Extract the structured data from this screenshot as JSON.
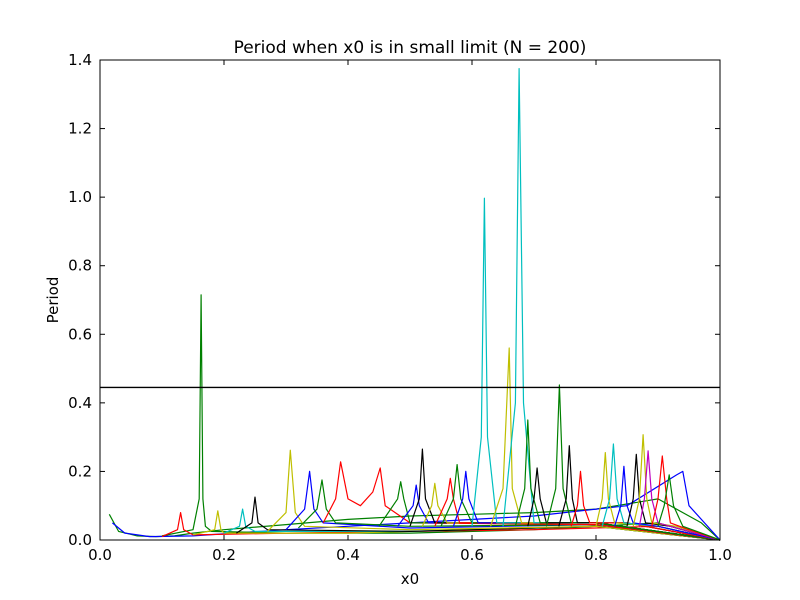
{
  "chart_data": {
    "type": "line",
    "title": "Period when x0 is in small limit (N = 200)",
    "xlabel": "x0",
    "ylabel": "Period",
    "xlim": [
      0.0,
      1.0
    ],
    "ylim": [
      0.0,
      1.4
    ],
    "xticks": [
      "0.0",
      "0.2",
      "0.4",
      "0.6",
      "0.8",
      "1.0"
    ],
    "yticks": [
      "0.0",
      "0.2",
      "0.4",
      "0.6",
      "0.8",
      "1.0",
      "1.2",
      "1.4"
    ],
    "grid": false,
    "reference_line": {
      "y": 0.445,
      "color": "#000000"
    },
    "colors": [
      "#0000ff",
      "#008000",
      "#ff0000",
      "#00bfbf",
      "#bf00bf",
      "#bfbf00",
      "#000000"
    ],
    "series": [
      {
        "x": [
          0.015,
          0.03,
          0.06,
          0.09,
          0.12,
          0.15,
          0.2,
          0.3,
          0.4,
          0.5,
          0.6,
          0.7,
          0.8,
          0.9,
          0.97,
          1.0
        ],
        "y": [
          0.075,
          0.025,
          0.012,
          0.01,
          0.012,
          0.02,
          0.03,
          0.045,
          0.06,
          0.07,
          0.075,
          0.08,
          0.09,
          0.12,
          0.05,
          0.0
        ],
        "color": "#008000"
      },
      {
        "x": [
          0.02,
          0.04,
          0.08,
          0.15,
          0.3,
          0.5,
          0.7,
          0.85,
          0.93,
          0.94,
          0.95,
          1.0
        ],
        "y": [
          0.05,
          0.02,
          0.01,
          0.012,
          0.03,
          0.05,
          0.07,
          0.1,
          0.19,
          0.2,
          0.1,
          0.0
        ],
        "color": "#0000ff"
      },
      {
        "x": [
          0.1,
          0.15,
          0.16,
          0.163,
          0.166,
          0.17,
          0.18,
          0.3,
          0.5,
          0.7,
          0.9,
          1.0
        ],
        "y": [
          0.012,
          0.03,
          0.12,
          0.715,
          0.12,
          0.04,
          0.025,
          0.02,
          0.02,
          0.03,
          0.05,
          0.0
        ],
        "color": "#008000"
      },
      {
        "x": [
          0.1,
          0.125,
          0.13,
          0.135,
          0.15,
          0.3,
          0.5,
          0.7,
          0.9,
          1.0
        ],
        "y": [
          0.01,
          0.03,
          0.08,
          0.03,
          0.015,
          0.02,
          0.025,
          0.03,
          0.04,
          0.0
        ],
        "color": "#ff0000"
      },
      {
        "x": [
          0.15,
          0.185,
          0.19,
          0.195,
          0.2,
          0.4,
          0.6,
          0.8,
          1.0
        ],
        "y": [
          0.015,
          0.03,
          0.085,
          0.03,
          0.02,
          0.02,
          0.03,
          0.04,
          0.0
        ],
        "color": "#bfbf00"
      },
      {
        "x": [
          0.2,
          0.225,
          0.23,
          0.235,
          0.25,
          0.5,
          0.8,
          1.0
        ],
        "y": [
          0.02,
          0.04,
          0.09,
          0.04,
          0.025,
          0.025,
          0.04,
          0.0
        ],
        "color": "#00bfbf"
      },
      {
        "x": [
          0.22,
          0.245,
          0.25,
          0.255,
          0.27,
          0.5,
          0.8,
          1.0
        ],
        "y": [
          0.02,
          0.05,
          0.125,
          0.05,
          0.03,
          0.025,
          0.04,
          0.0
        ],
        "color": "#000000"
      },
      {
        "x": [
          0.27,
          0.3,
          0.307,
          0.315,
          0.33,
          0.5,
          0.8,
          1.0
        ],
        "y": [
          0.025,
          0.08,
          0.262,
          0.08,
          0.04,
          0.03,
          0.04,
          0.0
        ],
        "color": "#bfbf00"
      },
      {
        "x": [
          0.3,
          0.33,
          0.338,
          0.345,
          0.36,
          0.5,
          0.8,
          1.0
        ],
        "y": [
          0.03,
          0.09,
          0.2,
          0.09,
          0.05,
          0.035,
          0.045,
          0.0
        ],
        "color": "#0000ff"
      },
      {
        "x": [
          0.32,
          0.35,
          0.358,
          0.365,
          0.38,
          0.5,
          0.8,
          1.0
        ],
        "y": [
          0.035,
          0.09,
          0.175,
          0.09,
          0.05,
          0.04,
          0.045,
          0.0
        ],
        "color": "#008000"
      },
      {
        "x": [
          0.36,
          0.38,
          0.388,
          0.4,
          0.42,
          0.44,
          0.452,
          0.46,
          0.5,
          0.8,
          1.0
        ],
        "y": [
          0.05,
          0.12,
          0.228,
          0.12,
          0.1,
          0.14,
          0.21,
          0.1,
          0.05,
          0.045,
          0.0
        ],
        "color": "#ff0000"
      },
      {
        "x": [
          0.45,
          0.48,
          0.485,
          0.49,
          0.5,
          0.8,
          1.0
        ],
        "y": [
          0.04,
          0.12,
          0.17,
          0.12,
          0.05,
          0.05,
          0.0
        ],
        "color": "#008000"
      },
      {
        "x": [
          0.48,
          0.505,
          0.51,
          0.515,
          0.53,
          0.8,
          1.0
        ],
        "y": [
          0.04,
          0.1,
          0.16,
          0.1,
          0.05,
          0.05,
          0.0
        ],
        "color": "#0000ff"
      },
      {
        "x": [
          0.5,
          0.515,
          0.52,
          0.525,
          0.54,
          0.8,
          1.0
        ],
        "y": [
          0.04,
          0.12,
          0.265,
          0.12,
          0.05,
          0.05,
          0.0
        ],
        "color": "#000000"
      },
      {
        "x": [
          0.52,
          0.535,
          0.54,
          0.545,
          0.56,
          0.8,
          1.0
        ],
        "y": [
          0.04,
          0.1,
          0.165,
          0.1,
          0.05,
          0.05,
          0.0
        ],
        "color": "#bfbf00"
      },
      {
        "x": [
          0.54,
          0.56,
          0.565,
          0.57,
          0.58,
          0.8,
          1.0
        ],
        "y": [
          0.04,
          0.12,
          0.18,
          0.12,
          0.05,
          0.05,
          0.0
        ],
        "color": "#ff0000"
      },
      {
        "x": [
          0.55,
          0.57,
          0.576,
          0.582,
          0.6,
          0.8,
          1.0
        ],
        "y": [
          0.04,
          0.12,
          0.22,
          0.12,
          0.05,
          0.05,
          0.0
        ],
        "color": "#008000"
      },
      {
        "x": [
          0.57,
          0.585,
          0.59,
          0.595,
          0.61,
          0.8,
          1.0
        ],
        "y": [
          0.04,
          0.12,
          0.2,
          0.12,
          0.05,
          0.05,
          0.0
        ],
        "color": "#0000ff"
      },
      {
        "x": [
          0.6,
          0.615,
          0.62,
          0.625,
          0.64,
          0.8,
          1.0
        ],
        "y": [
          0.04,
          0.3,
          0.997,
          0.3,
          0.05,
          0.05,
          0.0
        ],
        "color": "#00bfbf"
      },
      {
        "x": [
          0.63,
          0.65,
          0.66,
          0.665,
          0.68,
          0.8,
          1.0
        ],
        "y": [
          0.04,
          0.15,
          0.56,
          0.15,
          0.05,
          0.05,
          0.0
        ],
        "color": "#bfbf00"
      },
      {
        "x": [
          0.65,
          0.67,
          0.676,
          0.683,
          0.7,
          0.8,
          1.0
        ],
        "y": [
          0.04,
          0.4,
          1.375,
          0.4,
          0.05,
          0.05,
          0.0
        ],
        "color": "#00bfbf"
      },
      {
        "x": [
          0.67,
          0.685,
          0.69,
          0.695,
          0.71,
          0.8,
          1.0
        ],
        "y": [
          0.04,
          0.15,
          0.35,
          0.15,
          0.05,
          0.05,
          0.0
        ],
        "color": "#008000"
      },
      {
        "x": [
          0.69,
          0.7,
          0.705,
          0.71,
          0.72,
          0.8,
          1.0
        ],
        "y": [
          0.04,
          0.12,
          0.21,
          0.12,
          0.05,
          0.05,
          0.0
        ],
        "color": "#000000"
      },
      {
        "x": [
          0.72,
          0.735,
          0.741,
          0.747,
          0.76,
          0.8,
          1.0
        ],
        "y": [
          0.04,
          0.15,
          0.452,
          0.15,
          0.05,
          0.05,
          0.0
        ],
        "color": "#008000"
      },
      {
        "x": [
          0.74,
          0.752,
          0.757,
          0.762,
          0.77,
          0.85,
          1.0
        ],
        "y": [
          0.04,
          0.12,
          0.275,
          0.12,
          0.05,
          0.05,
          0.0
        ],
        "color": "#000000"
      },
      {
        "x": [
          0.76,
          0.77,
          0.775,
          0.78,
          0.79,
          0.85,
          1.0
        ],
        "y": [
          0.04,
          0.1,
          0.2,
          0.1,
          0.05,
          0.05,
          0.0
        ],
        "color": "#ff0000"
      },
      {
        "x": [
          0.8,
          0.81,
          0.815,
          0.82,
          0.83,
          0.9,
          1.0
        ],
        "y": [
          0.04,
          0.12,
          0.255,
          0.12,
          0.05,
          0.04,
          0.0
        ],
        "color": "#bfbf00"
      },
      {
        "x": [
          0.81,
          0.822,
          0.828,
          0.834,
          0.845,
          0.9,
          1.0
        ],
        "y": [
          0.04,
          0.12,
          0.28,
          0.12,
          0.05,
          0.04,
          0.0
        ],
        "color": "#00bfbf"
      },
      {
        "x": [
          0.83,
          0.84,
          0.845,
          0.85,
          0.86,
          0.9,
          1.0
        ],
        "y": [
          0.04,
          0.1,
          0.215,
          0.1,
          0.05,
          0.04,
          0.0
        ],
        "color": "#0000ff"
      },
      {
        "x": [
          0.85,
          0.86,
          0.865,
          0.87,
          0.88,
          0.92,
          1.0
        ],
        "y": [
          0.04,
          0.12,
          0.25,
          0.12,
          0.05,
          0.04,
          0.0
        ],
        "color": "#000000"
      },
      {
        "x": [
          0.86,
          0.87,
          0.876,
          0.882,
          0.89,
          0.93,
          1.0
        ],
        "y": [
          0.04,
          0.12,
          0.307,
          0.12,
          0.05,
          0.04,
          0.0
        ],
        "color": "#bfbf00"
      },
      {
        "x": [
          0.87,
          0.878,
          0.884,
          0.89,
          0.9,
          0.94,
          1.0
        ],
        "y": [
          0.04,
          0.12,
          0.26,
          0.12,
          0.05,
          0.03,
          0.0
        ],
        "color": "#bf00bf"
      },
      {
        "x": [
          0.89,
          0.9,
          0.907,
          0.914,
          0.92,
          0.95,
          1.0
        ],
        "y": [
          0.04,
          0.12,
          0.245,
          0.12,
          0.05,
          0.03,
          0.0
        ],
        "color": "#ff0000"
      },
      {
        "x": [
          0.9,
          0.91,
          0.918,
          0.925,
          0.94,
          0.97,
          1.0
        ],
        "y": [
          0.04,
          0.1,
          0.19,
          0.1,
          0.04,
          0.02,
          0.0
        ],
        "color": "#008000"
      }
    ]
  }
}
